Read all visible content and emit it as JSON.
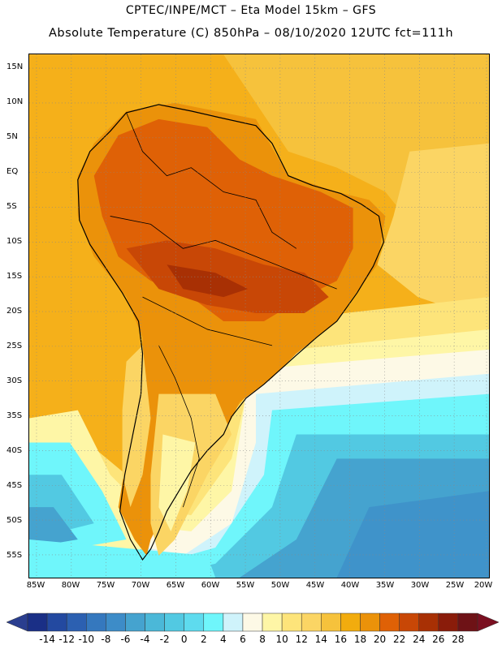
{
  "header": {
    "line1": "CPTEC/INPE/MCT –   Eta Model 15km – GFS",
    "line2": "Absolute Temperature (C) 850hPa – 08/10/2020 12UTC fct=111h"
  },
  "axes": {
    "lat_labels": [
      "15N",
      "10N",
      "5N",
      "EQ",
      "5S",
      "10S",
      "15S",
      "20S",
      "25S",
      "30S",
      "35S",
      "40S",
      "45S",
      "50S",
      "55S"
    ],
    "lon_labels": [
      "85W",
      "80W",
      "75W",
      "70W",
      "65W",
      "60W",
      "55W",
      "50W",
      "45W",
      "40W",
      "35W",
      "30W",
      "25W",
      "20W"
    ]
  },
  "colorbar": {
    "labels": [
      "-14",
      "-12",
      "-10",
      "-8",
      "-6",
      "-4",
      "-2",
      "0",
      "2",
      "4",
      "6",
      "8",
      "10",
      "12",
      "14",
      "16",
      "18",
      "20",
      "22",
      "24",
      "26",
      "28"
    ],
    "colors": [
      "#1a2f86",
      "#2349a0",
      "#2c60b1",
      "#3578be",
      "#3d8cc8",
      "#45a3cf",
      "#4bb8d8",
      "#52c9e2",
      "#5edbee",
      "#6ff6fb",
      "#cff3fb",
      "#fdf9e6",
      "#fef6a6",
      "#fde47a",
      "#fbd564",
      "#f6c23c",
      "#f2ac0e",
      "#eb920a",
      "#df6106",
      "#c84706",
      "#a83004",
      "#8a1c0a",
      "#6e1216"
    ],
    "colors_extend": {
      "low": "#2a3e8f",
      "high": "#7a0f20"
    }
  },
  "map": {
    "field": "Absolute Temperature 850hPa",
    "units": "C",
    "continent": "South America"
  }
}
